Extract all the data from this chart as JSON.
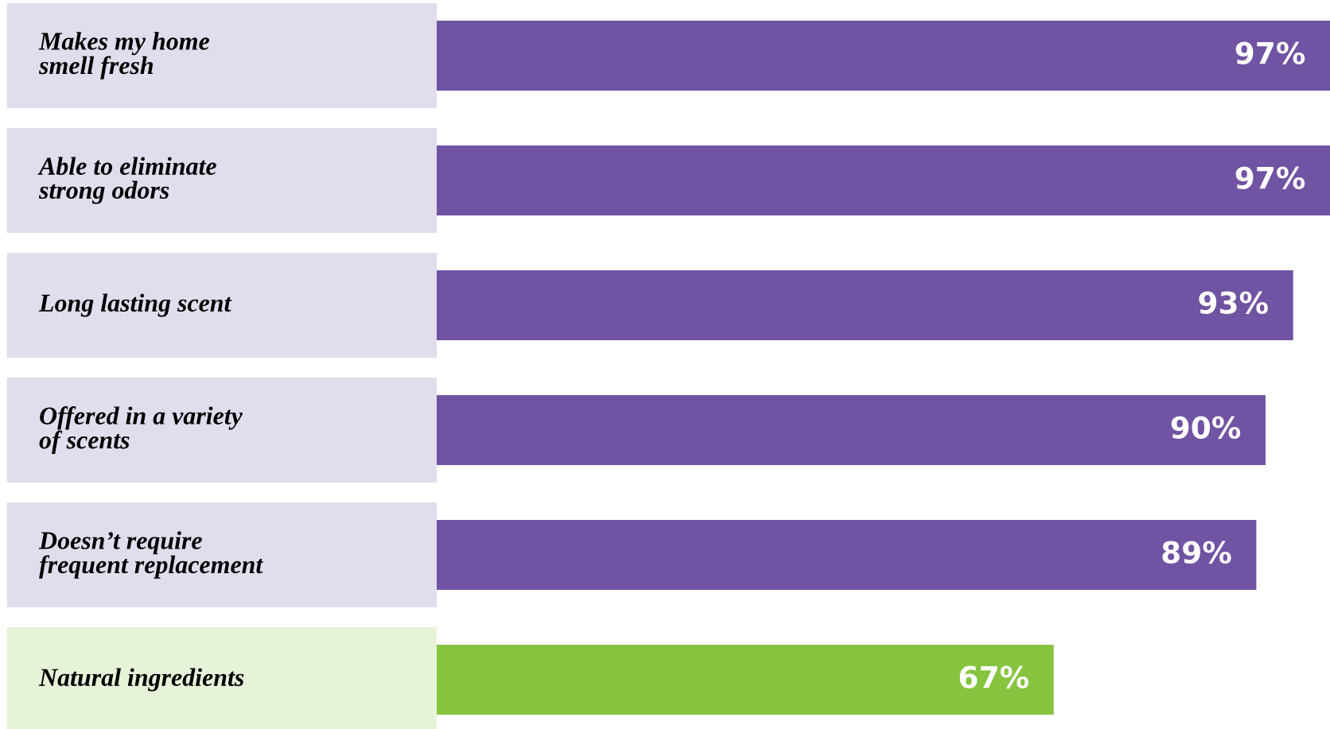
{
  "chart_data": {
    "type": "bar",
    "orientation": "horizontal",
    "categories": [
      "Makes my home\nsmell fresh",
      "Able to eliminate\nstrong odors",
      "Long lasting scent",
      "Offered in a variety\nof scents",
      "Doesn’t require\nfrequent replacement",
      "Natural ingredients"
    ],
    "values": [
      97,
      97,
      93,
      90,
      89,
      67
    ],
    "value_labels": [
      "97%",
      "97%",
      "93%",
      "90%",
      "89%",
      "67%"
    ],
    "colors": [
      "#7053a2",
      "#7053a2",
      "#7053a2",
      "#7053a2",
      "#7053a2",
      "#86c440"
    ]
  }
}
